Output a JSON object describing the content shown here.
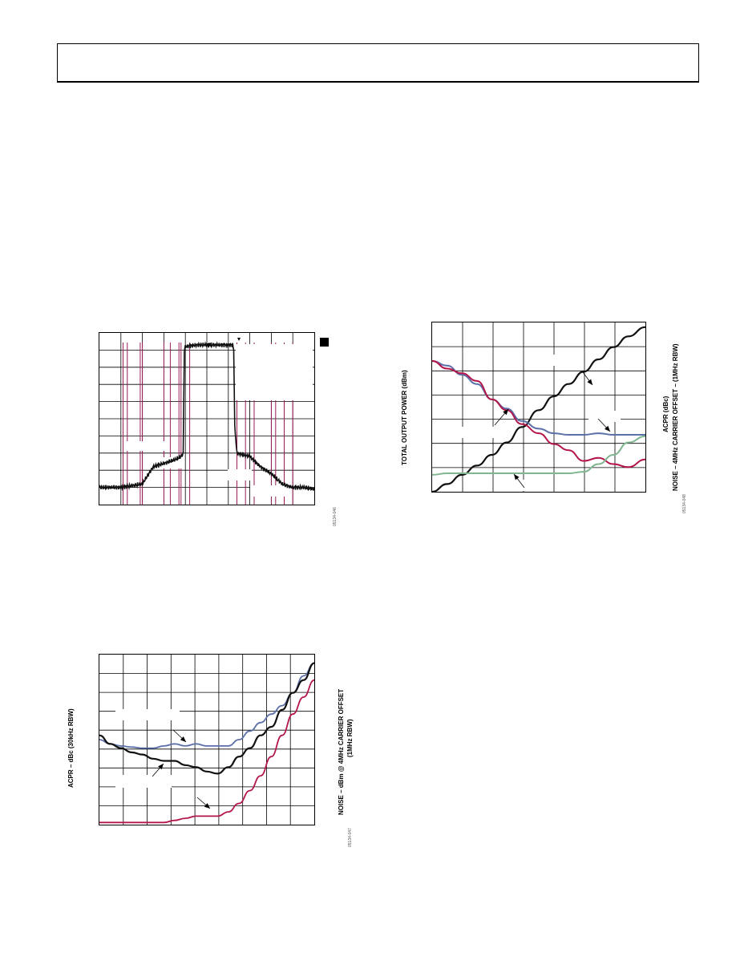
{
  "page": {
    "header_text": ""
  },
  "figures": {
    "spectrum": {
      "figure_id": "05134-046"
    },
    "acpr_noise": {
      "figure_id": "05134-047",
      "ylabel": "ACPR – dBc (30kHz RBW)",
      "ylabel_right_1": "NOISE – dBm @ 4MHz CARRIER OFFSET",
      "ylabel_right_2": "(1MHz RBW)"
    },
    "power_sweep": {
      "figure_id": "05134-048",
      "ylabel": "TOTAL OUTPUT POWER (dBm)",
      "ylabel_right_1": "ACPR (dBc)",
      "ylabel_right_2": "NOISE – 4MHz CARRIER OFFSET – (1MHz RBW)"
    }
  },
  "colors": {
    "black": "#111111",
    "blue": "#5b6fa8",
    "red": "#b3174a",
    "green": "#7fb58f",
    "marker_line": "#9a1d5a",
    "grid": "#000000"
  },
  "chart_data": [
    {
      "type": "line",
      "name": "spectrum",
      "grid": true,
      "grid_divisions": [
        10,
        10
      ],
      "x": [
        0,
        0.1,
        0.2,
        0.25,
        0.3,
        0.35,
        0.38,
        0.39,
        0.395,
        0.4,
        0.45,
        0.5,
        0.55,
        0.6,
        0.62,
        0.625,
        0.63,
        0.64,
        0.7,
        0.75,
        0.8,
        0.85,
        0.9,
        0.95,
        1.0
      ],
      "series": [
        {
          "values": [
            -90,
            -90,
            -88,
            -78,
            -76,
            -74,
            -72,
            -70,
            -10,
            -8,
            -7,
            -7,
            -7,
            -7,
            -7,
            -10,
            -55,
            -70,
            -72,
            -78,
            -82,
            -88,
            -90,
            -90,
            -91
          ]
        }
      ],
      "ylim": [
        -100,
        0
      ],
      "xlim": [
        0,
        1
      ]
    },
    {
      "type": "line",
      "name": "acpr_noise",
      "grid": true,
      "grid_divisions": [
        9,
        9
      ],
      "x": [
        0,
        0.05,
        0.1,
        0.15,
        0.2,
        0.25,
        0.3,
        0.35,
        0.4,
        0.45,
        0.5,
        0.55,
        0.6,
        0.65,
        0.7,
        0.75,
        0.8,
        0.85,
        0.9,
        0.95,
        1.0
      ],
      "series": [
        {
          "color_key": "blue",
          "values": [
            -50,
            -52,
            -53,
            -53.5,
            -54,
            -54,
            -53,
            -52,
            -53,
            -52,
            -53,
            -53,
            -53,
            -50,
            -46,
            -42,
            -38,
            -34,
            -28,
            -20,
            -14
          ]
        },
        {
          "color_key": "black",
          "values": [
            -48,
            -52,
            -54,
            -56,
            -57,
            -59,
            -60,
            -60,
            -62,
            -63,
            -65,
            -66,
            -63,
            -58,
            -54,
            -48,
            -44,
            -36,
            -28,
            -22,
            -14
          ]
        },
        {
          "color_key": "red",
          "values": [
            -89,
            -89,
            -89,
            -89,
            -89,
            -89,
            -89,
            -88,
            -87,
            -86,
            -86,
            -86,
            -84,
            -80,
            -74,
            -67,
            -58,
            -48,
            -38,
            -30,
            -22
          ]
        }
      ],
      "ylim": [
        -90,
        -10
      ],
      "xlim": [
        0,
        1
      ]
    },
    {
      "type": "line",
      "name": "power_sweep",
      "grid": true,
      "grid_divisions": [
        7,
        7
      ],
      "x": [
        0,
        0.07,
        0.14,
        0.21,
        0.28,
        0.35,
        0.42,
        0.5,
        0.57,
        0.64,
        0.71,
        0.78,
        0.85,
        0.92,
        1.0
      ],
      "series": [
        {
          "color_key": "black",
          "values": [
            0,
            0.05,
            0.11,
            0.17,
            0.24,
            0.32,
            0.42,
            0.53,
            0.62,
            0.7,
            0.78,
            0.86,
            0.94,
            1.01,
            1.07
          ]
        },
        {
          "color_key": "blue",
          "values": [
            0.85,
            0.82,
            0.76,
            0.7,
            0.6,
            0.54,
            0.46,
            0.41,
            0.38,
            0.37,
            0.37,
            0.38,
            0.37,
            0.37,
            0.37
          ]
        },
        {
          "color_key": "red",
          "values": [
            0.85,
            0.8,
            0.77,
            0.72,
            0.6,
            0.53,
            0.44,
            0.38,
            0.31,
            0.27,
            0.2,
            0.22,
            0.18,
            0.16,
            0.21
          ]
        },
        {
          "color_key": "green",
          "values": [
            0.11,
            0.12,
            0.12,
            0.12,
            0.12,
            0.12,
            0.12,
            0.12,
            0.12,
            0.12,
            0.13,
            0.18,
            0.24,
            0.32,
            0.36
          ]
        }
      ],
      "ylim": [
        0,
        1.1
      ],
      "xlim": [
        0,
        1
      ]
    }
  ]
}
